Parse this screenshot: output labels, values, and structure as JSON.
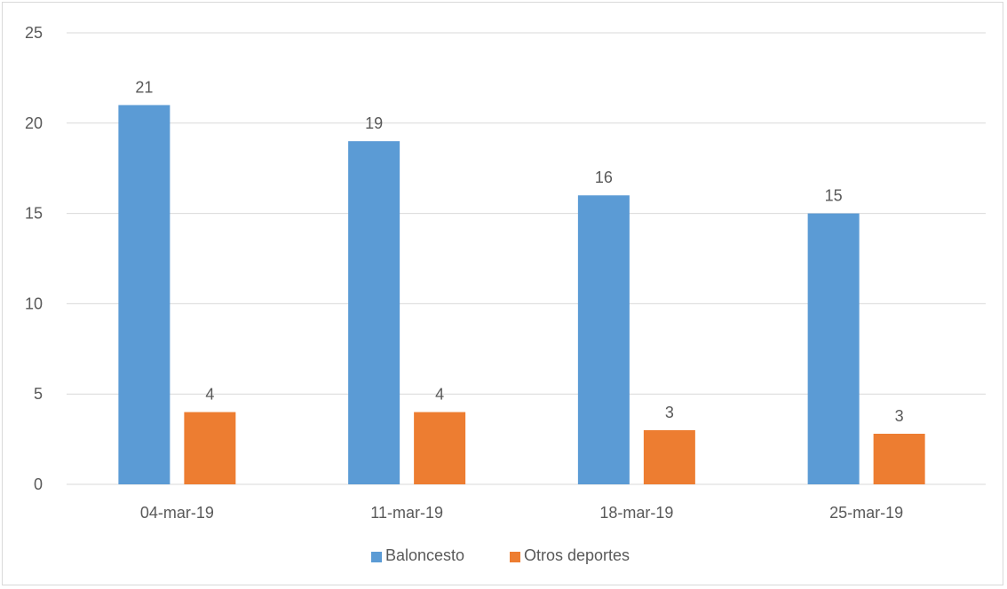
{
  "chart_data": {
    "type": "bar",
    "categories": [
      "04-mar-19",
      "11-mar-19",
      "18-mar-19",
      "25-mar-19"
    ],
    "series": [
      {
        "name": "Baloncesto",
        "color": "#5b9bd5",
        "values": [
          21,
          19,
          16,
          15
        ],
        "labels": [
          "21",
          "19",
          "16",
          "15"
        ]
      },
      {
        "name": "Otros deportes",
        "color": "#ed7d31",
        "values": [
          4,
          4,
          3,
          2.8
        ],
        "labels": [
          "4",
          "4",
          "3",
          "3"
        ]
      }
    ],
    "ylim": [
      0,
      25
    ],
    "yticks": [
      "0",
      "5",
      "10",
      "15",
      "20",
      "25"
    ],
    "title": "",
    "xlabel": "",
    "ylabel": "",
    "grid": true,
    "legend_position": "bottom",
    "colors": {
      "grid": "#d9d9d9",
      "text": "#595959"
    }
  }
}
